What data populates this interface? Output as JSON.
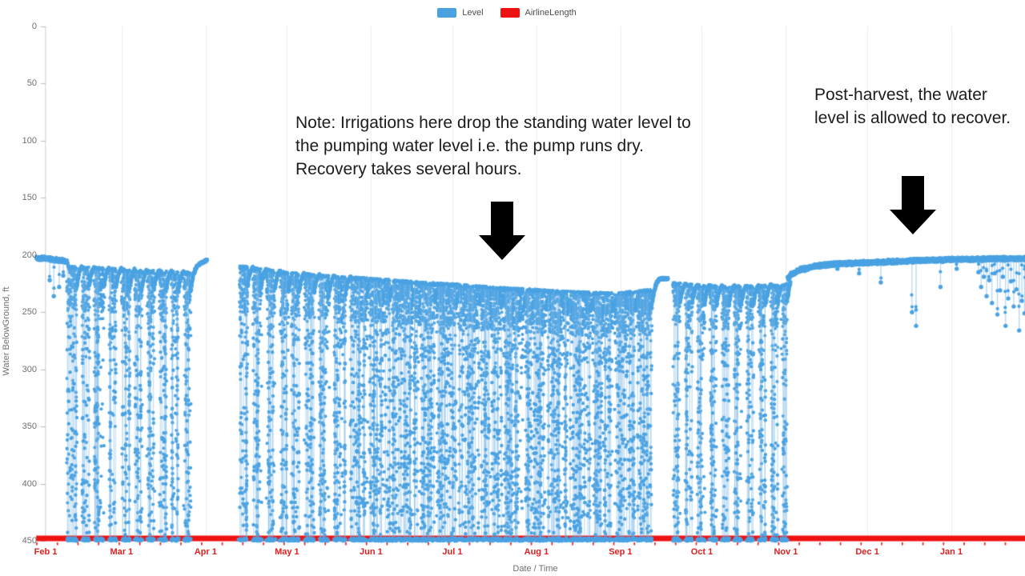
{
  "legend": {
    "items": [
      {
        "label": "Level",
        "color": "#4aa2e2"
      },
      {
        "label": "AirlineLength",
        "color": "#ee1212"
      }
    ]
  },
  "chart_data": {
    "type": "scatter",
    "title": "",
    "xlabel": "Date / Time",
    "ylabel": "Water BelowGround, ft",
    "legend_position": "top-center",
    "grid": {
      "vertical_month_gridlines": true,
      "horizontal_gridlines": false,
      "gridline_color": "#ededed"
    },
    "y_axis": {
      "ticks": [
        0,
        50,
        100,
        150,
        200,
        250,
        300,
        350,
        400,
        450
      ],
      "range": [
        0,
        450
      ],
      "inverted_depth_axis": true,
      "unit": "ft",
      "tick_color": "#6f6f6f"
    },
    "x_axis": {
      "ticks": [
        {
          "label": "Feb 1",
          "day": 0
        },
        {
          "label": "Mar 1",
          "day": 28
        },
        {
          "label": "Apr 1",
          "day": 59
        },
        {
          "label": "May 1",
          "day": 89
        },
        {
          "label": "Jun 1",
          "day": 120
        },
        {
          "label": "Jul 1",
          "day": 150
        },
        {
          "label": "Aug 1",
          "day": 181
        },
        {
          "label": "Sep 1",
          "day": 212
        },
        {
          "label": "Oct 1",
          "day": 242
        },
        {
          "label": "Nov 1",
          "day": 273
        },
        {
          "label": "Dec 1",
          "day": 303
        },
        {
          "label": "Jan 1",
          "day": 334
        }
      ],
      "range_days": [
        -3.5,
        361.5
      ],
      "label_color": "#e02020",
      "minor_tick_interval_days": 7.6
    },
    "series": [
      {
        "name": "Level",
        "type": "scatter",
        "color": "#4aa2e2",
        "description": "Water level below ground. Flat standing level ~203-230 ft; during Feb-Oct irrigation events the level drops to the pumping level (450 ft, pump runs dry) and recovers over several hours; after Nov 1 the level recovers toward ~203 ft.",
        "standing_level_trend_ft": [
          [
            -3,
            203
          ],
          [
            0,
            203
          ],
          [
            6,
            205
          ],
          [
            10,
            207
          ],
          [
            28,
            209
          ],
          [
            45,
            211
          ],
          [
            53,
            212
          ],
          [
            56,
            208
          ],
          [
            60,
            204
          ],
          [
            66,
            205
          ],
          [
            71,
            206
          ],
          [
            80,
            209
          ],
          [
            89,
            212
          ],
          [
            100,
            214
          ],
          [
            110,
            216
          ],
          [
            119,
            217
          ],
          [
            130,
            219
          ],
          [
            140,
            221
          ],
          [
            150,
            222
          ],
          [
            165,
            225
          ],
          [
            181,
            227
          ],
          [
            195,
            229
          ],
          [
            207,
            230
          ],
          [
            215,
            229
          ],
          [
            223,
            227
          ],
          [
            226,
            220
          ],
          [
            231,
            221
          ],
          [
            240,
            223
          ],
          [
            250,
            224
          ],
          [
            260,
            224
          ],
          [
            270,
            223
          ],
          [
            273,
            222
          ],
          [
            275,
            217
          ],
          [
            278,
            213
          ],
          [
            283,
            210
          ],
          [
            290,
            208
          ],
          [
            300,
            207
          ],
          [
            310,
            206
          ],
          [
            320,
            205
          ],
          [
            334,
            204
          ],
          [
            361,
            203
          ]
        ],
        "pumping_level_ft": 450,
        "irrigation_clusters_days": [
          [
            8,
            11.5
          ],
          [
            13.5,
            16
          ],
          [
            18,
            21.5
          ],
          [
            23.5,
            26
          ],
          [
            28,
            31
          ],
          [
            33,
            35.5
          ],
          [
            37.5,
            40
          ],
          [
            42,
            44.5
          ],
          [
            46.5,
            49
          ],
          [
            51,
            53.5
          ],
          [
            71.5,
            74.5
          ],
          [
            76.5,
            79.5
          ],
          [
            81.5,
            84.5
          ],
          [
            86.5,
            89.5
          ],
          [
            90.5,
            93.5
          ],
          [
            95.5,
            99
          ],
          [
            101,
            104.5
          ],
          [
            106.5,
            110.5
          ],
          [
            112.5,
            118.5
          ],
          [
            119.5,
            127
          ],
          [
            127.8,
            135.3
          ],
          [
            136,
            143.5
          ],
          [
            144.2,
            151.7
          ],
          [
            152.4,
            159.9
          ],
          [
            160.6,
            168.1
          ],
          [
            168.8,
            176.3
          ],
          [
            177,
            184.5
          ],
          [
            185.2,
            192.7
          ],
          [
            193.4,
            200.9
          ],
          [
            201.6,
            209.1
          ],
          [
            209.8,
            217.3
          ],
          [
            218,
            223.5
          ],
          [
            231.5,
            234
          ],
          [
            236,
            238.5
          ],
          [
            240.5,
            243
          ],
          [
            245,
            247.5
          ],
          [
            249.5,
            252
          ],
          [
            254,
            256.5
          ],
          [
            258.5,
            261
          ],
          [
            263,
            265.5
          ],
          [
            267.5,
            270
          ],
          [
            271.5,
            273.5
          ]
        ],
        "pre_season_dips_day_ft": [
          [
            1.5,
            222
          ],
          [
            3,
            236
          ],
          [
            5,
            228
          ],
          [
            6.5,
            218
          ]
        ],
        "post_season_dips_day_ft": [
          [
            280,
            214
          ],
          [
            292,
            212
          ],
          [
            300,
            216
          ],
          [
            308,
            224
          ],
          [
            319.5,
            250
          ],
          [
            321,
            262
          ],
          [
            330,
            228
          ],
          [
            336,
            212
          ],
          [
            344,
            215
          ],
          [
            345,
            228
          ],
          [
            346,
            219
          ],
          [
            347,
            236
          ],
          [
            348,
            222
          ],
          [
            349,
            242
          ],
          [
            350,
            216
          ],
          [
            351,
            252
          ],
          [
            352,
            231
          ],
          [
            353,
            219
          ],
          [
            354,
            262
          ],
          [
            355,
            238
          ],
          [
            356,
            223
          ],
          [
            357,
            245
          ],
          [
            358,
            230
          ],
          [
            359,
            266
          ],
          [
            360,
            240
          ],
          [
            361,
            251
          ]
        ]
      },
      {
        "name": "AirlineLength",
        "type": "line",
        "color": "#ee1212",
        "constant_value_ft": 450,
        "span_days": [
          -3.5,
          361.5
        ],
        "description": "Constant airline length of 450 ft drawn as a thick red line along the bottom of the plot."
      }
    ]
  },
  "annotations": [
    {
      "text": "Note: Irrigations here drop the standing water level to the pumping water level i.e. the pump runs dry. Recovery takes several hours.",
      "arrow": "down",
      "points_to": "irrigation drawdown spikes (Jul)"
    },
    {
      "text": "Post-harvest, the water level is allowed to recover.",
      "arrow": "down",
      "points_to": "recovered level (Dec)"
    }
  ]
}
